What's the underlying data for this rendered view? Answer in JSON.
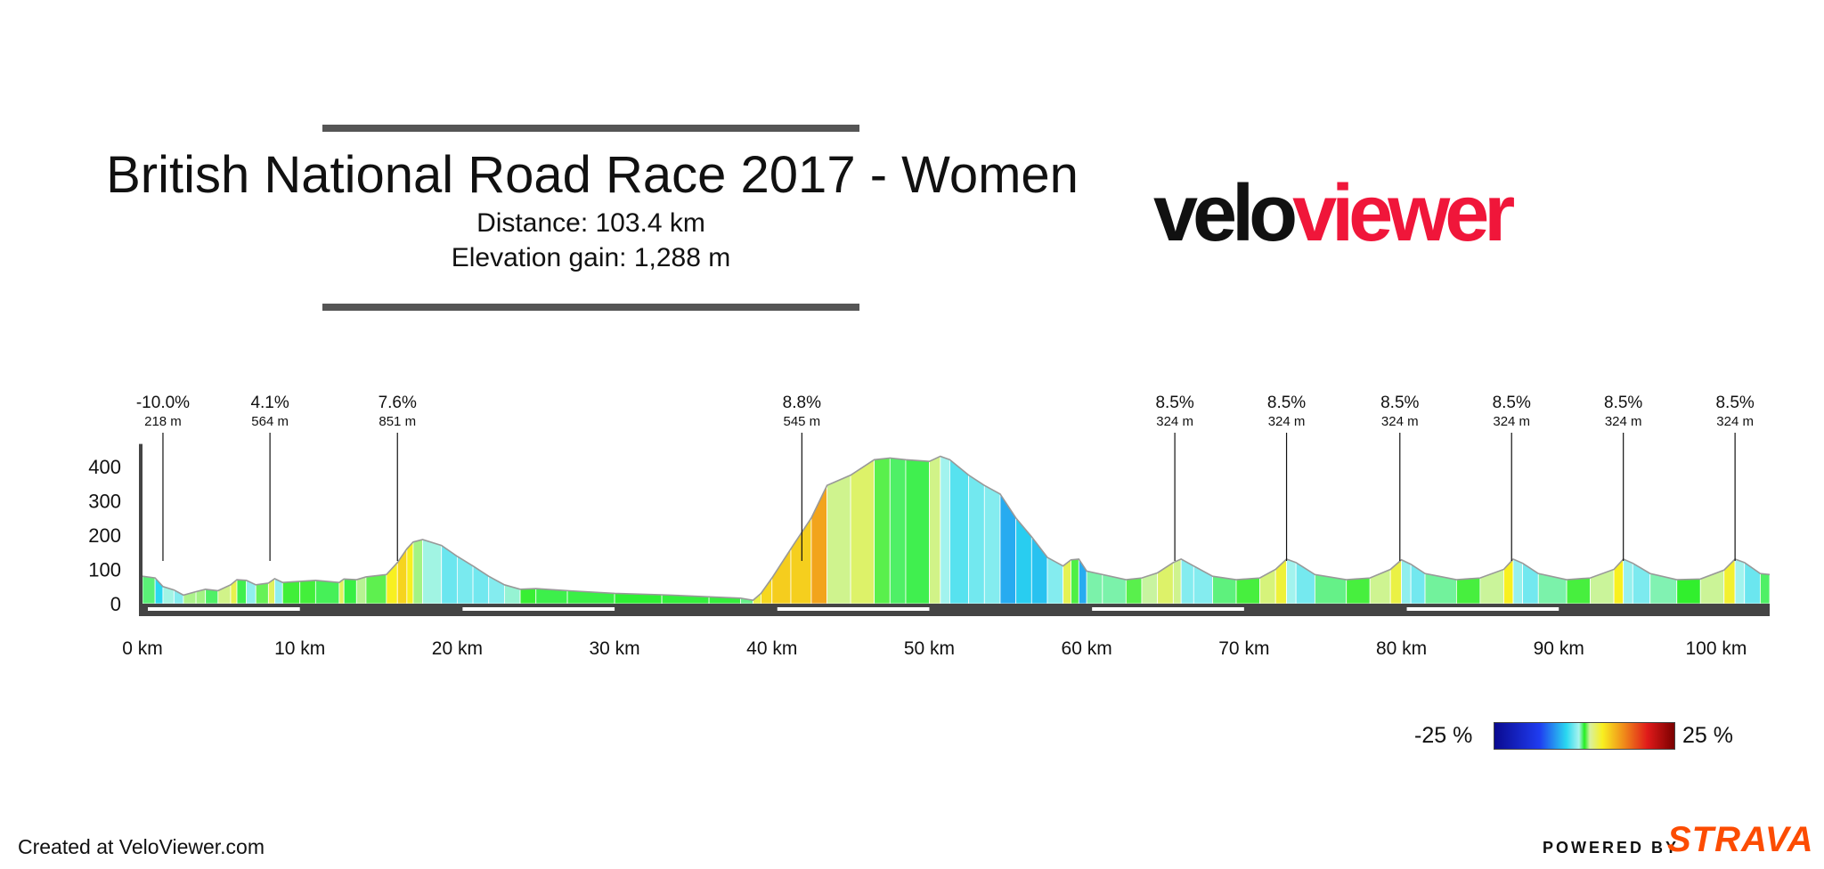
{
  "title": "British National Road Race 2017 - Women",
  "distance_text": "Distance: 103.4 km",
  "elevation_text": "Elevation gain: 1,288 m",
  "logo": {
    "part1": "velo",
    "part2": "viewer"
  },
  "footer": {
    "created": "Created at VeloViewer.com",
    "powered": "POWERED BY",
    "strava": "STRAVA"
  },
  "legend": {
    "min": "-25 %",
    "max": "25 %"
  },
  "chart_data": {
    "type": "area",
    "xlim": [
      0,
      103.4
    ],
    "ylim": [
      -40,
      440
    ],
    "x_ticks": [
      0,
      10,
      20,
      30,
      40,
      50,
      60,
      70,
      80,
      90,
      100
    ],
    "x_tick_labels": [
      "0 km",
      "10 km",
      "20 km",
      "30 km",
      "40 km",
      "50 km",
      "60 km",
      "70 km",
      "80 km",
      "90 km",
      "100 km"
    ],
    "y_ticks": [
      0,
      100,
      200,
      300,
      400
    ],
    "y_tick_labels": [
      "0",
      "100",
      "200",
      "300",
      "400"
    ],
    "profile": [
      {
        "x": 0,
        "y": 80
      },
      {
        "x": 0.8,
        "y": 75
      },
      {
        "x": 1.3,
        "y": 50
      },
      {
        "x": 2.0,
        "y": 40
      },
      {
        "x": 2.6,
        "y": 25
      },
      {
        "x": 3.4,
        "y": 35
      },
      {
        "x": 4.0,
        "y": 42
      },
      {
        "x": 4.8,
        "y": 38
      },
      {
        "x": 5.6,
        "y": 55
      },
      {
        "x": 6.0,
        "y": 70
      },
      {
        "x": 6.6,
        "y": 68
      },
      {
        "x": 7.2,
        "y": 55
      },
      {
        "x": 8.0,
        "y": 60
      },
      {
        "x": 8.4,
        "y": 73
      },
      {
        "x": 8.9,
        "y": 62
      },
      {
        "x": 10.0,
        "y": 65
      },
      {
        "x": 11.0,
        "y": 68
      },
      {
        "x": 12.5,
        "y": 62
      },
      {
        "x": 12.8,
        "y": 72
      },
      {
        "x": 13.6,
        "y": 70
      },
      {
        "x": 14.2,
        "y": 78
      },
      {
        "x": 15.5,
        "y": 85
      },
      {
        "x": 16.2,
        "y": 120
      },
      {
        "x": 16.8,
        "y": 160
      },
      {
        "x": 17.2,
        "y": 180
      },
      {
        "x": 17.8,
        "y": 187
      },
      {
        "x": 19.0,
        "y": 170
      },
      {
        "x": 20.0,
        "y": 138
      },
      {
        "x": 21.0,
        "y": 110
      },
      {
        "x": 22.0,
        "y": 80
      },
      {
        "x": 23.0,
        "y": 55
      },
      {
        "x": 24.0,
        "y": 42
      },
      {
        "x": 25.0,
        "y": 44
      },
      {
        "x": 27.0,
        "y": 38
      },
      {
        "x": 30.0,
        "y": 30
      },
      {
        "x": 33.0,
        "y": 26
      },
      {
        "x": 36.0,
        "y": 20
      },
      {
        "x": 38.0,
        "y": 16
      },
      {
        "x": 38.8,
        "y": 10
      },
      {
        "x": 39.3,
        "y": 30
      },
      {
        "x": 40.0,
        "y": 75
      },
      {
        "x": 41.2,
        "y": 160
      },
      {
        "x": 42.5,
        "y": 250
      },
      {
        "x": 43.5,
        "y": 345
      },
      {
        "x": 45.0,
        "y": 375
      },
      {
        "x": 46.5,
        "y": 420
      },
      {
        "x": 47.5,
        "y": 425
      },
      {
        "x": 48.5,
        "y": 420
      },
      {
        "x": 50.0,
        "y": 415
      },
      {
        "x": 50.7,
        "y": 430
      },
      {
        "x": 51.3,
        "y": 420
      },
      {
        "x": 52.5,
        "y": 375
      },
      {
        "x": 53.5,
        "y": 345
      },
      {
        "x": 54.5,
        "y": 320
      },
      {
        "x": 55.5,
        "y": 250
      },
      {
        "x": 56.5,
        "y": 195
      },
      {
        "x": 57.5,
        "y": 135
      },
      {
        "x": 58.5,
        "y": 110
      },
      {
        "x": 59.0,
        "y": 128
      },
      {
        "x": 59.5,
        "y": 130
      },
      {
        "x": 60.0,
        "y": 95
      },
      {
        "x": 61.0,
        "y": 85
      },
      {
        "x": 62.5,
        "y": 70
      },
      {
        "x": 63.5,
        "y": 75
      },
      {
        "x": 64.5,
        "y": 90
      },
      {
        "x": 65.5,
        "y": 120
      },
      {
        "x": 66.0,
        "y": 130
      },
      {
        "x": 66.8,
        "y": 110
      },
      {
        "x": 68.0,
        "y": 80
      },
      {
        "x": 69.5,
        "y": 70
      },
      {
        "x": 71.0,
        "y": 75
      },
      {
        "x": 72.0,
        "y": 100
      },
      {
        "x": 72.7,
        "y": 130
      },
      {
        "x": 73.3,
        "y": 120
      },
      {
        "x": 74.5,
        "y": 85
      },
      {
        "x": 76.5,
        "y": 70
      },
      {
        "x": 78.0,
        "y": 75
      },
      {
        "x": 79.3,
        "y": 100
      },
      {
        "x": 80.0,
        "y": 128
      },
      {
        "x": 80.6,
        "y": 115
      },
      {
        "x": 81.5,
        "y": 88
      },
      {
        "x": 83.5,
        "y": 70
      },
      {
        "x": 85.0,
        "y": 75
      },
      {
        "x": 86.5,
        "y": 100
      },
      {
        "x": 87.1,
        "y": 130
      },
      {
        "x": 87.7,
        "y": 118
      },
      {
        "x": 88.7,
        "y": 88
      },
      {
        "x": 90.5,
        "y": 70
      },
      {
        "x": 92.0,
        "y": 75
      },
      {
        "x": 93.5,
        "y": 100
      },
      {
        "x": 94.1,
        "y": 130
      },
      {
        "x": 94.7,
        "y": 118
      },
      {
        "x": 95.8,
        "y": 88
      },
      {
        "x": 97.5,
        "y": 70
      },
      {
        "x": 99.0,
        "y": 72
      },
      {
        "x": 100.5,
        "y": 98
      },
      {
        "x": 101.2,
        "y": 130
      },
      {
        "x": 101.8,
        "y": 120
      },
      {
        "x": 102.8,
        "y": 88
      },
      {
        "x": 103.4,
        "y": 85
      }
    ],
    "annotations": [
      {
        "x": 1.3,
        "grade": "-10.0%",
        "length": "218 m"
      },
      {
        "x": 8.1,
        "grade": "4.1%",
        "length": "564 m"
      },
      {
        "x": 16.2,
        "grade": "7.6%",
        "length": "851 m"
      },
      {
        "x": 41.9,
        "grade": "8.8%",
        "length": "545 m"
      },
      {
        "x": 65.6,
        "grade": "8.5%",
        "length": "324 m"
      },
      {
        "x": 72.7,
        "grade": "8.5%",
        "length": "324 m"
      },
      {
        "x": 79.9,
        "grade": "8.5%",
        "length": "324 m"
      },
      {
        "x": 87.0,
        "grade": "8.5%",
        "length": "324 m"
      },
      {
        "x": 94.1,
        "grade": "8.5%",
        "length": "324 m"
      },
      {
        "x": 101.2,
        "grade": "8.5%",
        "length": "324 m"
      }
    ],
    "grade_scale": {
      "min": -25,
      "max": 25
    }
  }
}
